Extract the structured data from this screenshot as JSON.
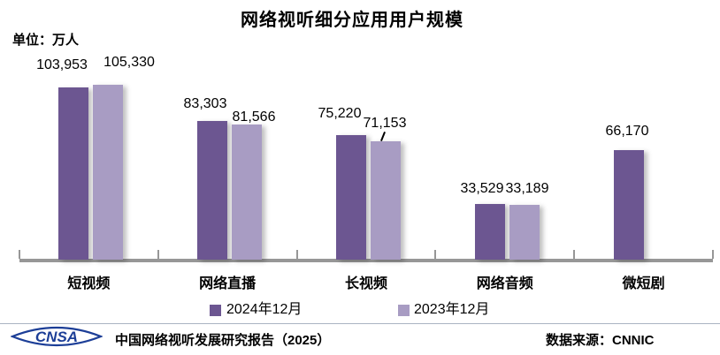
{
  "title": "网络视听细分应用用户规模",
  "unit_label": "单位：万人",
  "chart_data": {
    "type": "bar",
    "categories": [
      "短视频",
      "网络直播",
      "长视频",
      "网络音频",
      "微短剧"
    ],
    "series": [
      {
        "name": "2024年12月",
        "color": "#6c5691",
        "values": [
          103953,
          83303,
          75220,
          33529,
          66170
        ],
        "display_values": [
          "103,953",
          "83,303",
          "75,220",
          "33,529",
          "66,170"
        ]
      },
      {
        "name": "2023年12月",
        "color": "#a89cc3",
        "values": [
          105330,
          81566,
          71153,
          33189,
          null
        ],
        "display_values": [
          "105,330",
          "81,566",
          "71,153",
          "33,189",
          null
        ]
      }
    ],
    "ylabel": "万人",
    "ylim": [
      0,
      110000
    ],
    "grid": false,
    "legend_position": "bottom",
    "axis_color": "#979797",
    "annotations": [
      "label 71,153 connected to its bar with a short leader line"
    ]
  },
  "footer": {
    "logo_text": "CNSA",
    "logo_color": "#1c3e97",
    "report_title": "中国网络视听发展研究报告（2025）",
    "data_source": "数据来源：CNNIC"
  }
}
